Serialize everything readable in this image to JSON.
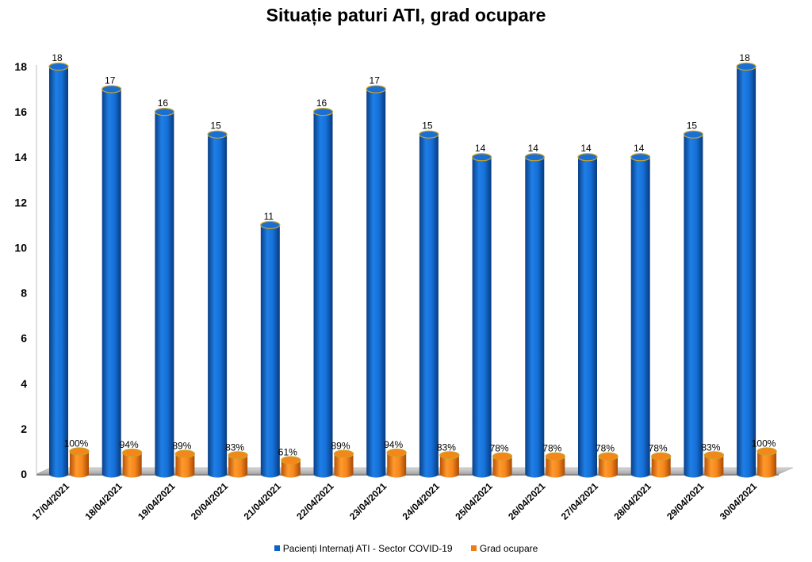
{
  "chart_data": {
    "type": "bar",
    "title": "Situație paturi ATI, grad ocupare",
    "categories": [
      "17/04/2021",
      "18/04/2021",
      "19/04/2021",
      "20/04/2021",
      "21/04/2021",
      "22/04/2021",
      "23/04/2021",
      "24/04/2021",
      "25/04/2021",
      "26/04/2021",
      "27/04/2021",
      "28/04/2021",
      "29/04/2021",
      "30/04/2021"
    ],
    "series": [
      {
        "name": "Pacienți Internați ATI - Sector COVID-19",
        "values": [
          18,
          17,
          16,
          15,
          11,
          16,
          17,
          15,
          14,
          14,
          14,
          14,
          15,
          18
        ],
        "labels": [
          "18",
          "17",
          "16",
          "15",
          "11",
          "16",
          "17",
          "15",
          "14",
          "14",
          "14",
          "14",
          "15",
          "18"
        ],
        "color": "#0a63c9"
      },
      {
        "name": "Grad ocupare",
        "values": [
          1.0,
          0.94,
          0.89,
          0.83,
          0.61,
          0.89,
          0.94,
          0.83,
          0.78,
          0.78,
          0.78,
          0.78,
          0.83,
          1.0
        ],
        "labels": [
          "100%",
          "94%",
          "89%",
          "83%",
          "61%",
          "89%",
          "94%",
          "83%",
          "78%",
          "78%",
          "78%",
          "78%",
          "83%",
          "100%"
        ],
        "color": "#f07d14"
      }
    ],
    "yticks": [
      "0",
      "2",
      "4",
      "6",
      "8",
      "10",
      "12",
      "14",
      "16",
      "18"
    ],
    "ylim": [
      0,
      18
    ],
    "grid": false,
    "legend_position": "bottom"
  }
}
